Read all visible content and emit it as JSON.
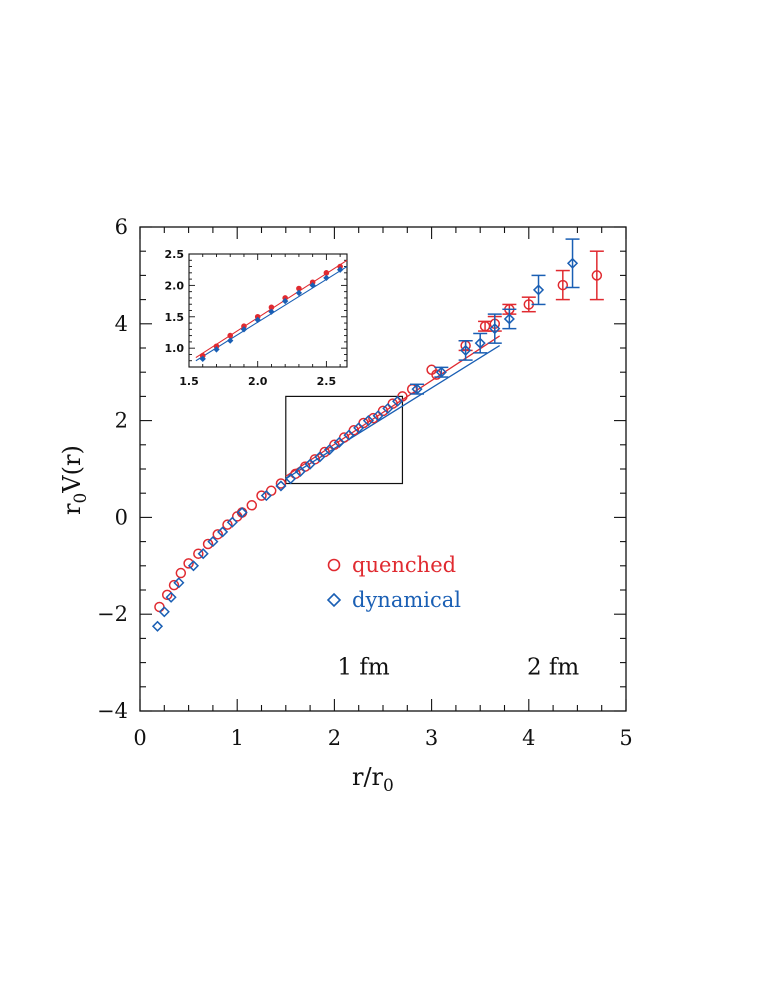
{
  "chart_data": {
    "type": "scatter",
    "xlabel_main": "r/r",
    "xlabel_sub": "0",
    "ylabel_pre": "r",
    "ylabel_sub": "0",
    "ylabel_post": "V(r)",
    "xlim": [
      0,
      5
    ],
    "ylim": [
      -4,
      6
    ],
    "xticks": [
      "0",
      "1",
      "2",
      "3",
      "4",
      "5"
    ],
    "yticks": [
      "−4",
      "−2",
      "0",
      "2",
      "4",
      "6"
    ],
    "annotations": [
      {
        "text": "1 fm",
        "x": 2.3,
        "y": -3.25
      },
      {
        "text": "2 fm",
        "x": 4.25,
        "y": -3.25
      }
    ],
    "colors": {
      "quenched": "#e02a30",
      "dynamical": "#1a5fb4"
    },
    "series": [
      {
        "name": "quenched",
        "marker": "circle",
        "color": "#e02a30",
        "x": [
          0.2,
          0.28,
          0.35,
          0.42,
          0.5,
          0.6,
          0.7,
          0.8,
          0.9,
          1.0,
          1.05,
          1.15,
          1.25,
          1.35,
          1.45,
          1.6,
          1.7,
          1.8,
          1.9,
          2.0,
          2.1,
          2.2,
          2.3,
          2.4,
          2.5,
          2.6,
          2.7,
          2.8,
          3.0,
          3.05,
          3.35,
          3.55,
          3.65,
          3.8,
          4.0,
          4.35,
          4.7
        ],
        "y": [
          -1.85,
          -1.6,
          -1.4,
          -1.15,
          -0.95,
          -0.75,
          -0.55,
          -0.35,
          -0.15,
          0.02,
          0.1,
          0.25,
          0.45,
          0.55,
          0.7,
          0.9,
          1.05,
          1.2,
          1.35,
          1.5,
          1.65,
          1.8,
          1.95,
          2.05,
          2.2,
          2.35,
          2.5,
          2.65,
          3.05,
          2.95,
          3.55,
          3.95,
          4.0,
          4.3,
          4.4,
          4.8,
          5.0
        ],
        "err": [
          0,
          0,
          0,
          0,
          0,
          0,
          0,
          0,
          0,
          0,
          0,
          0,
          0,
          0,
          0,
          0,
          0,
          0,
          0,
          0,
          0,
          0,
          0,
          0,
          0,
          0,
          0,
          0,
          0,
          0,
          0.1,
          0.1,
          0.15,
          0.1,
          0.15,
          0.3,
          0.5
        ]
      },
      {
        "name": "dynamical",
        "marker": "diamond",
        "color": "#1a5fb4",
        "x": [
          0.18,
          0.25,
          0.32,
          0.4,
          0.55,
          0.65,
          0.75,
          0.85,
          0.95,
          1.05,
          1.3,
          1.45,
          1.55,
          1.65,
          1.75,
          1.85,
          1.95,
          2.05,
          2.15,
          2.25,
          2.35,
          2.45,
          2.55,
          2.65,
          2.85,
          3.1,
          3.35,
          3.5,
          3.65,
          3.8,
          4.1,
          4.45
        ],
        "y": [
          -2.25,
          -1.95,
          -1.65,
          -1.35,
          -1.0,
          -0.75,
          -0.5,
          -0.3,
          -0.1,
          0.1,
          0.45,
          0.65,
          0.8,
          0.95,
          1.1,
          1.25,
          1.4,
          1.55,
          1.7,
          1.85,
          2.0,
          2.1,
          2.25,
          2.4,
          2.65,
          3.0,
          3.45,
          3.6,
          3.9,
          4.1,
          4.7,
          5.25
        ],
        "err": [
          0,
          0,
          0,
          0,
          0,
          0,
          0,
          0,
          0,
          0,
          0,
          0,
          0,
          0,
          0,
          0,
          0,
          0,
          0,
          0,
          0,
          0,
          0,
          0,
          0.1,
          0.1,
          0.2,
          0.2,
          0.3,
          0.2,
          0.3,
          0.5
        ]
      }
    ],
    "fit_lines": [
      {
        "name": "quenched",
        "color": "#e02a30",
        "x": [
          1.5,
          3.7
        ],
        "y": [
          0.85,
          3.75
        ]
      },
      {
        "name": "dynamical",
        "color": "#1a5fb4",
        "x": [
          1.5,
          3.7
        ],
        "y": [
          0.8,
          3.55
        ]
      }
    ],
    "zoom_box": {
      "xlim": [
        1.5,
        2.7
      ],
      "ylim": [
        0.7,
        2.5
      ]
    },
    "inset": {
      "xlim": [
        1.5,
        2.65
      ],
      "ylim": [
        0.7,
        2.5
      ],
      "xticks": [
        "1.5",
        "2.0",
        "2.5"
      ],
      "yticks": [
        "1.0",
        "1.5",
        "2.0",
        "2.5"
      ],
      "quenched": {
        "x": [
          1.6,
          1.7,
          1.8,
          1.9,
          2.0,
          2.1,
          2.2,
          2.3,
          2.4,
          2.5,
          2.6
        ],
        "y": [
          0.88,
          1.03,
          1.2,
          1.35,
          1.5,
          1.65,
          1.8,
          1.95,
          2.05,
          2.2,
          2.3
        ]
      },
      "dynamical": {
        "x": [
          1.6,
          1.7,
          1.8,
          1.9,
          2.0,
          2.1,
          2.2,
          2.3,
          2.4,
          2.5,
          2.6
        ],
        "y": [
          0.83,
          0.98,
          1.12,
          1.3,
          1.45,
          1.58,
          1.75,
          1.88,
          2.0,
          2.12,
          2.25
        ]
      }
    }
  },
  "legend": {
    "quenched": "quenched",
    "dynamical": "dynamical"
  }
}
